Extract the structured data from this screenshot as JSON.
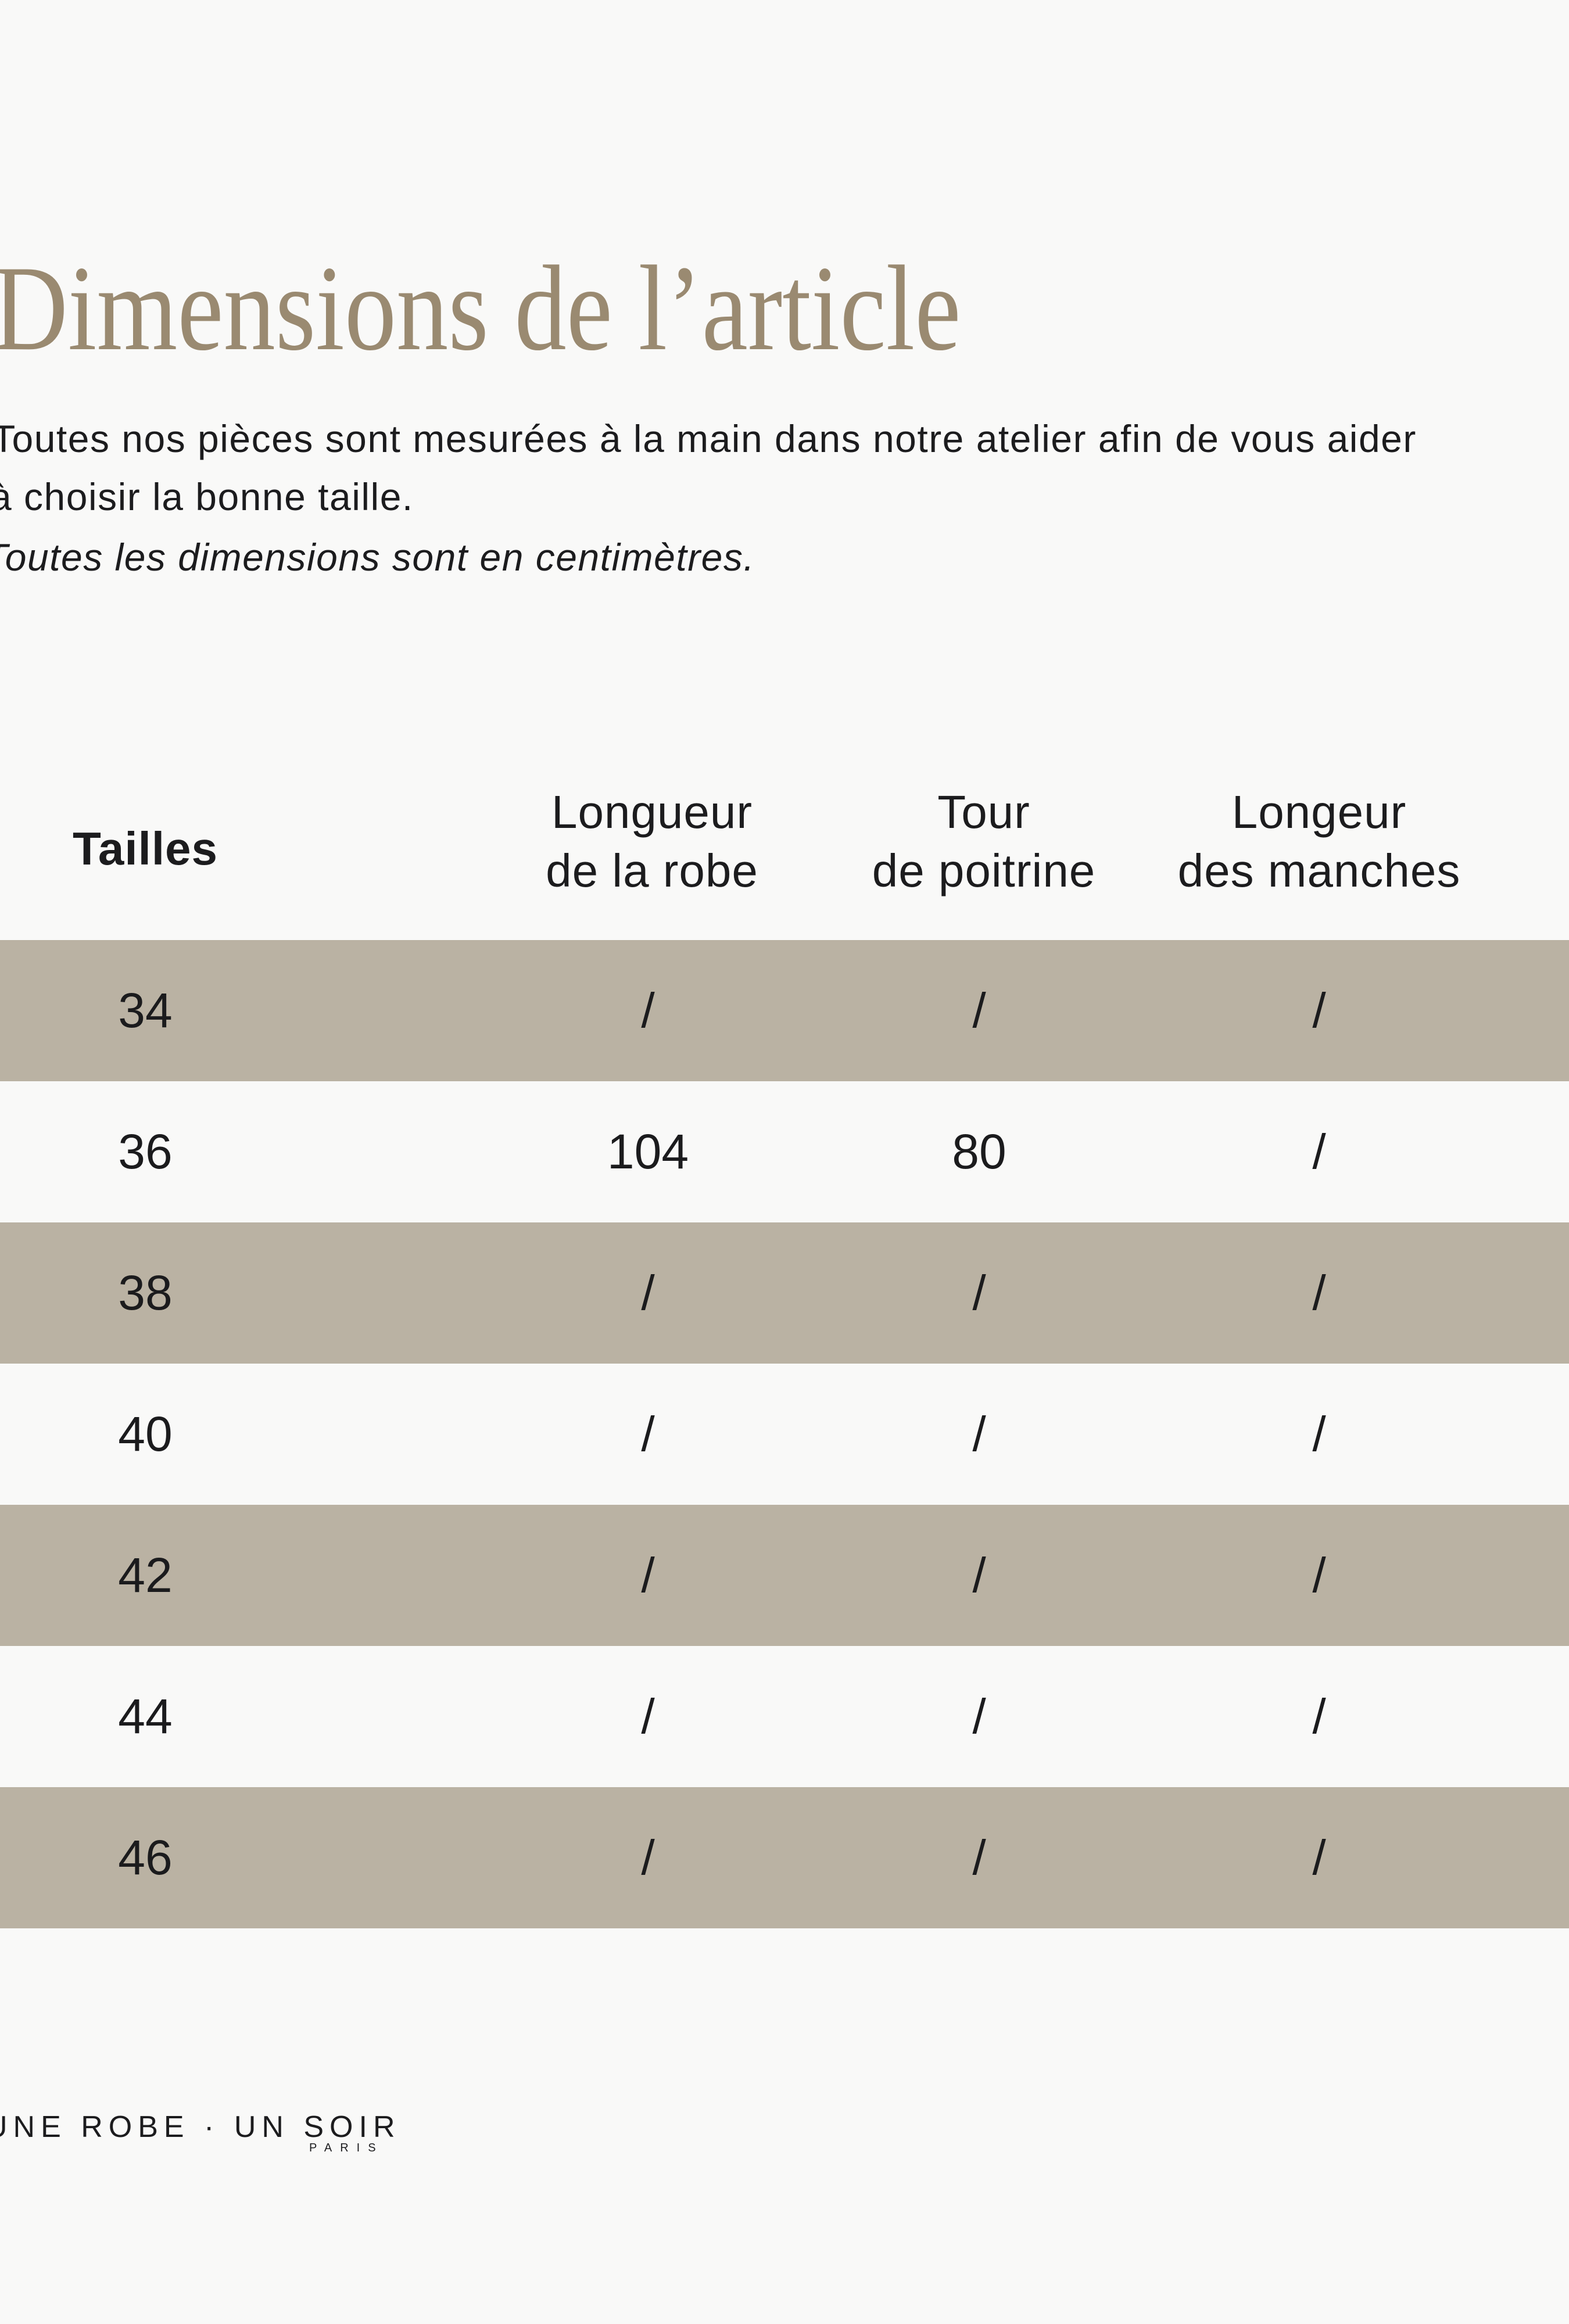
{
  "page": {
    "background": "#f9f9f8"
  },
  "title": {
    "text": "Dimensions de l’article",
    "color": "#9a8a71"
  },
  "intro": {
    "line1": "Toutes nos pièces sont mesurées à la main dans notre atelier afin de vous aider",
    "line2": "à choisir la bonne taille.",
    "note": "Toutes les dimensions sont en centimètres."
  },
  "table": {
    "size_header": "Tailles",
    "columns": [
      {
        "line1": "Longueur",
        "line2": "de la robe"
      },
      {
        "line1": "Tour",
        "line2": "de poitrine"
      },
      {
        "line1": "Longeur",
        "line2": "des manches"
      }
    ],
    "row_colors": {
      "shaded": "#bab2a3",
      "plain": "#f9f9f8"
    },
    "rows": [
      {
        "size": "34",
        "values": [
          "/",
          "/",
          "/"
        ]
      },
      {
        "size": "36",
        "values": [
          "104",
          "80",
          "/"
        ]
      },
      {
        "size": "38",
        "values": [
          "/",
          "/",
          "/"
        ]
      },
      {
        "size": "40",
        "values": [
          "/",
          "/",
          "/"
        ]
      },
      {
        "size": "42",
        "values": [
          "/",
          "/",
          "/"
        ]
      },
      {
        "size": "44",
        "values": [
          "/",
          "/",
          "/"
        ]
      },
      {
        "size": "46",
        "values": [
          "/",
          "/",
          "/"
        ]
      }
    ]
  },
  "footer": {
    "brand": "UNE ROBE · UN SOIR",
    "city": "PARIS"
  }
}
